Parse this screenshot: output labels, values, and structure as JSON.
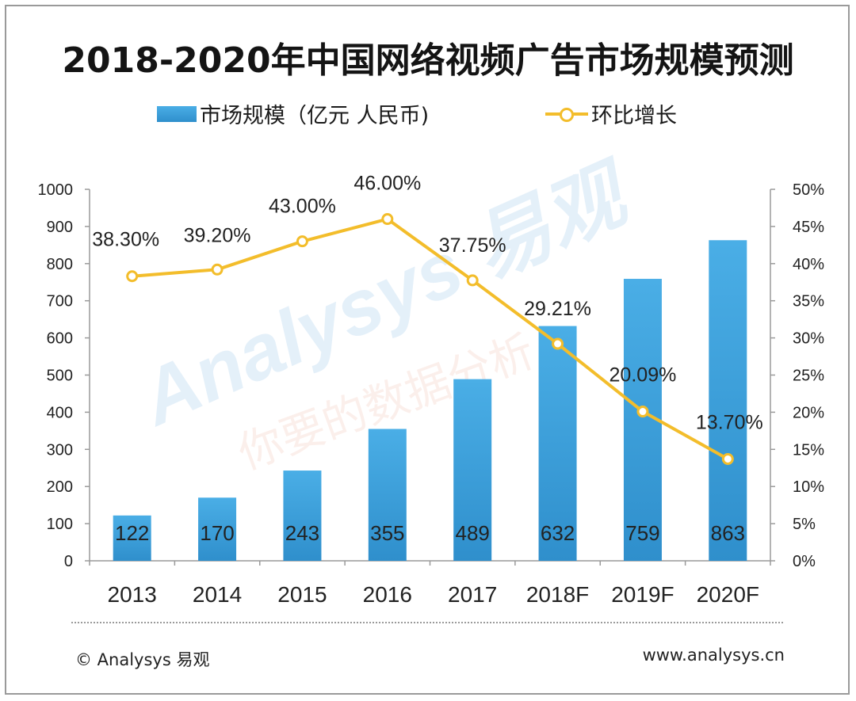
{
  "title": "2018-2020年中国网络视频广告市场规模预测",
  "legend": {
    "bar_label": "市场规模（亿元 人民币)",
    "line_label": "环比增长"
  },
  "watermark": {
    "brand": "Analysys 易观",
    "slogan": "你要的数据分析"
  },
  "footer": {
    "left": "© Analysys 易观",
    "right": "www.analysys.cn"
  },
  "colors": {
    "bar_top": "#4aaee6",
    "bar_bottom": "#2f8fcc",
    "line": "#f3bd2b"
  },
  "chart_data": {
    "type": "bar",
    "title": "2018-2020年中国网络视频广告市场规模预测",
    "categories": [
      "2013",
      "2014",
      "2015",
      "2016",
      "2017",
      "2018F",
      "2019F",
      "2020F"
    ],
    "series": [
      {
        "name": "市场规模（亿元 人民币)",
        "type": "bar",
        "axis": "left",
        "values": [
          122,
          170,
          243,
          355,
          489,
          632,
          759,
          863
        ],
        "labels": [
          "122",
          "170",
          "243",
          "355",
          "489",
          "632",
          "759",
          "863"
        ]
      },
      {
        "name": "环比增长",
        "type": "line",
        "axis": "right",
        "values": [
          38.3,
          39.2,
          43.0,
          46.0,
          37.75,
          29.21,
          20.09,
          13.7
        ],
        "labels": [
          "38.30%",
          "39.20%",
          "43.00%",
          "46.00%",
          "37.75%",
          "29.21%",
          "20.09%",
          "13.70%"
        ]
      }
    ],
    "left_axis": {
      "min": 0,
      "max": 1000,
      "ticks": [
        "0",
        "100",
        "200",
        "300",
        "400",
        "500",
        "600",
        "700",
        "800",
        "900",
        "1000"
      ]
    },
    "right_axis": {
      "min": 0,
      "max": 50,
      "ticks": [
        "0%",
        "5%",
        "10%",
        "15%",
        "20%",
        "25%",
        "30%",
        "35%",
        "40%",
        "45%",
        "50%"
      ]
    },
    "grid": false,
    "legend_position": "top"
  }
}
